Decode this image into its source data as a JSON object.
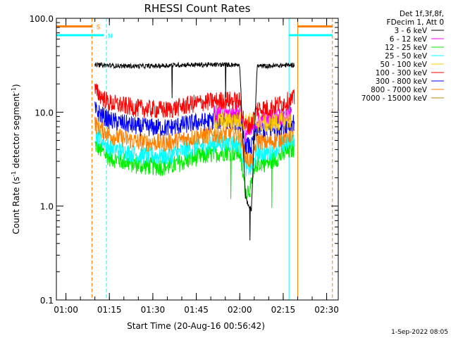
{
  "chart_data": {
    "type": "line",
    "title": "RHESSI Count Rates",
    "xlabel": "Start Time (20-Aug-16 00:56:42)",
    "ylabel": "Count Rate (s",
    "ylabel_exp": "-1",
    "ylabel_mid": " detector segment",
    "ylabel_exp2": "-1",
    "ylabel_end": ")",
    "yscale": "log",
    "ylim": [
      0.1,
      100.0
    ],
    "xlim": [
      "00:56:42",
      "02:34:00"
    ],
    "yticks": [
      "0.1",
      "1.0",
      "10.0",
      "100.0"
    ],
    "xticks": [
      "01:00",
      "01:15",
      "01:30",
      "01:45",
      "02:00",
      "02:15",
      "02:30"
    ],
    "legend_header": [
      "Det 1f,3f,8f,",
      "FDecim 1, Att 0"
    ],
    "legend_position": "top-right-outside",
    "series": [
      {
        "name": "3 - 6 keV",
        "color": "#000000",
        "x": [
          "01:10",
          "01:20",
          "01:30",
          "01:40",
          "01:50",
          "02:00",
          "02:02",
          "02:04",
          "02:06",
          "02:10",
          "02:19"
        ],
        "values": [
          32,
          31,
          31,
          32,
          32,
          32,
          1.2,
          0.9,
          31,
          31,
          32
        ]
      },
      {
        "name": "6 - 12 keV",
        "color": "#ff00ff",
        "x": [
          "01:51",
          "02:00",
          "02:02",
          "02:04",
          "02:06",
          "02:10",
          "02:18"
        ],
        "values": [
          9.5,
          9.8,
          6,
          6.2,
          8,
          8.6,
          9.5
        ]
      },
      {
        "name": "12 - 25 keV",
        "color": "#00ee00",
        "x": [
          "01:10",
          "01:15",
          "01:25",
          "01:35",
          "01:45",
          "01:55",
          "02:00",
          "02:02",
          "02:04",
          "02:06",
          "02:10",
          "02:19"
        ],
        "values": [
          4.5,
          3.3,
          2.7,
          2.6,
          3.3,
          3.8,
          3.7,
          1.4,
          1.6,
          2.9,
          2.9,
          4.2
        ]
      },
      {
        "name": "25 - 50 keV",
        "color": "#00ffff",
        "x": [
          "01:10",
          "01:15",
          "01:25",
          "01:35",
          "01:45",
          "01:55",
          "02:00",
          "02:02",
          "02:04",
          "02:06",
          "02:10",
          "02:19"
        ],
        "values": [
          6.0,
          4.2,
          3.5,
          3.4,
          4.3,
          4.8,
          4.6,
          2.6,
          2.5,
          3.7,
          3.7,
          5.3
        ]
      },
      {
        "name": "50 - 100 keV",
        "color": "#ffcc00",
        "x": [
          "01:51",
          "02:00",
          "02:10",
          "02:18"
        ],
        "values": [
          8,
          8.2,
          7.5,
          8.4
        ]
      },
      {
        "name": "100 - 300 keV",
        "color": "#ff0000",
        "x": [
          "01:10",
          "01:15",
          "01:25",
          "01:35",
          "01:45",
          "01:55",
          "02:00",
          "02:02",
          "02:04",
          "02:06",
          "02:10",
          "02:19"
        ],
        "values": [
          17,
          12.5,
          11,
          10.5,
          12.5,
          13.5,
          13,
          7,
          7.5,
          11,
          11,
          14
        ]
      },
      {
        "name": "300 - 800 keV",
        "color": "#0000ff",
        "x": [
          "01:10",
          "01:15",
          "01:25",
          "01:35",
          "01:45",
          "01:55",
          "02:00",
          "02:02",
          "02:04",
          "02:06",
          "02:10",
          "02:19"
        ],
        "values": [
          10.5,
          8.2,
          7.0,
          6.8,
          7.8,
          8.3,
          8.0,
          4.5,
          4.2,
          6.8,
          6.5,
          8.0
        ]
      },
      {
        "name": "800 - 7000 keV",
        "color": "#ff8000",
        "x": [
          "01:10",
          "01:15",
          "01:25",
          "01:35",
          "01:45",
          "01:55",
          "02:00",
          "02:02",
          "02:04",
          "02:06",
          "02:10",
          "02:19"
        ],
        "values": [
          7.5,
          5.7,
          4.8,
          4.7,
          5.5,
          6.0,
          5.8,
          3.3,
          3.0,
          5.0,
          4.8,
          6.0
        ]
      },
      {
        "name": "7000 - 15000 keV",
        "color": "#b8860b",
        "x": [],
        "values": []
      }
    ],
    "markers": [
      {
        "label": "S",
        "color": "#ff8000",
        "bars": [
          [
            "00:56:42",
            "01:09"
          ],
          [
            "02:20",
            "02:32"
          ]
        ],
        "y_level": 82
      },
      {
        "label": "N",
        "color": "#00ffff",
        "bars": [
          [
            "00:56:42",
            "01:13"
          ],
          [
            "02:17",
            "02:32"
          ]
        ],
        "y_level": 66
      }
    ],
    "vertical_lines": [
      {
        "x": "00:56:42",
        "color": "#00ffff",
        "style": "solid"
      },
      {
        "x": "01:09",
        "color": "#ff8000",
        "style": "dashed"
      },
      {
        "x": "01:14",
        "color": "#00ffff",
        "style": "dashed"
      },
      {
        "x": "02:17",
        "color": "#00ffff",
        "style": "solid"
      },
      {
        "x": "02:20",
        "color": "#ff8000",
        "style": "solid"
      },
      {
        "x": "02:32",
        "color": "#ff8000",
        "style": "dashed"
      }
    ]
  },
  "footer": {
    "timestamp": "1-Sep-2022 08:05"
  }
}
